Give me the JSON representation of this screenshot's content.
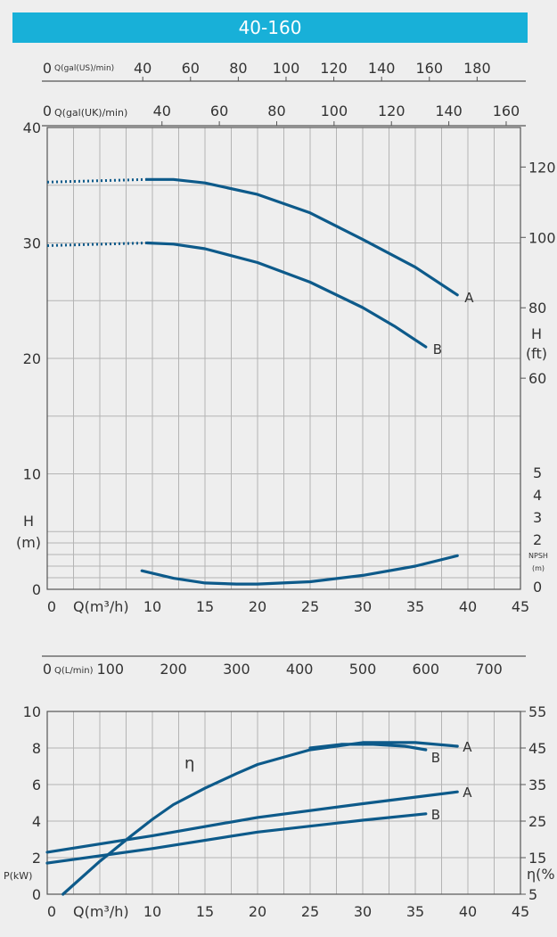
{
  "title": "40-160",
  "colors": {
    "header": "#18b0d8",
    "curve": "#0d5a8a",
    "grid": "#b4b4b4"
  },
  "chart_data": [
    {
      "type": "line",
      "name": "head-curve",
      "x_unit_label": "Q(m³/h)",
      "x_ticks": [
        0,
        10,
        15,
        20,
        25,
        30,
        35,
        40,
        45
      ],
      "xlim": [
        0,
        45
      ],
      "y_left_label": [
        "H",
        "(m)"
      ],
      "y_left_ticks": [
        0,
        10,
        20,
        30,
        40
      ],
      "ylim": [
        0,
        40
      ],
      "y_right_ft_label": [
        "H",
        "(ft)"
      ],
      "y_right_ft_ticks": [
        60,
        80,
        100,
        120
      ],
      "y_right_npsh_label": [
        "NPSH",
        "(m)"
      ],
      "y_right_npsh_ticks": [
        0,
        2,
        3,
        4,
        5
      ],
      "top_axis_us_label": "Q(gal(US)/min)",
      "top_axis_us_ticks": [
        0,
        40,
        60,
        80,
        100,
        120,
        140,
        160,
        180
      ],
      "top_axis_uk_label": "Q(gal(UK)/min)",
      "top_axis_uk_ticks": [
        0,
        40,
        60,
        80,
        100,
        120,
        140,
        160
      ],
      "series": [
        {
          "name": "A",
          "dotted_x": [
            0,
            9.5
          ],
          "x": [
            9.5,
            12,
            15,
            20,
            25,
            30,
            35,
            39
          ],
          "y": [
            35.5,
            35.5,
            35.2,
            34.2,
            32.6,
            30.3,
            27.9,
            25.5
          ]
        },
        {
          "name": "B",
          "dotted_x": [
            0,
            9.5
          ],
          "x": [
            9.5,
            12,
            15,
            20,
            25,
            30,
            33,
            36
          ],
          "y": [
            30,
            29.9,
            29.5,
            28.3,
            26.6,
            24.4,
            22.8,
            21
          ]
        },
        {
          "name": "NPSH",
          "x": [
            9,
            12,
            15,
            18,
            20,
            25,
            30,
            35,
            39
          ],
          "y": [
            2.6,
            1.95,
            1.55,
            1.45,
            1.45,
            1.65,
            2.2,
            3,
            3.9
          ]
        }
      ]
    },
    {
      "type": "line",
      "name": "power-efficiency-curve",
      "x_unit_label": "Q(m³/h)",
      "x_ticks": [
        0,
        10,
        15,
        20,
        25,
        30,
        35,
        40,
        45
      ],
      "xlim": [
        0,
        45
      ],
      "top_axis_l_label": "Q(L/min)",
      "top_axis_l_ticks": [
        0,
        100,
        200,
        300,
        400,
        500,
        600,
        700
      ],
      "y_left_label": "P(kW)",
      "y_left_ticks": [
        0,
        2,
        4,
        6,
        8,
        10
      ],
      "ylim": [
        0,
        10
      ],
      "y_right_label": "η(%",
      "y_right_ticks": [
        5,
        15,
        25,
        35,
        45,
        55
      ],
      "eta_symbol": "η",
      "series": [
        {
          "name": "A",
          "kind": "efficiency",
          "x": [
            1.5,
            5,
            8,
            10,
            12,
            15,
            18,
            20,
            25,
            30,
            35,
            39
          ],
          "y": [
            5,
            14,
            21,
            25.5,
            29.5,
            34,
            38,
            40.5,
            44.5,
            46.5,
            46.5,
            45.5
          ]
        },
        {
          "name": "B",
          "kind": "efficiency",
          "x": [
            25,
            28,
            31,
            34,
            36
          ],
          "y": [
            45,
            46,
            46,
            45.5,
            44.5
          ]
        },
        {
          "name": "A",
          "kind": "power",
          "x": [
            0,
            10,
            20,
            30,
            39
          ],
          "y": [
            2.3,
            3.2,
            4.2,
            4.95,
            5.6
          ]
        },
        {
          "name": "B",
          "kind": "power",
          "x": [
            0,
            10,
            20,
            30,
            36
          ],
          "y": [
            1.7,
            2.5,
            3.4,
            4.05,
            4.4
          ]
        }
      ]
    }
  ]
}
